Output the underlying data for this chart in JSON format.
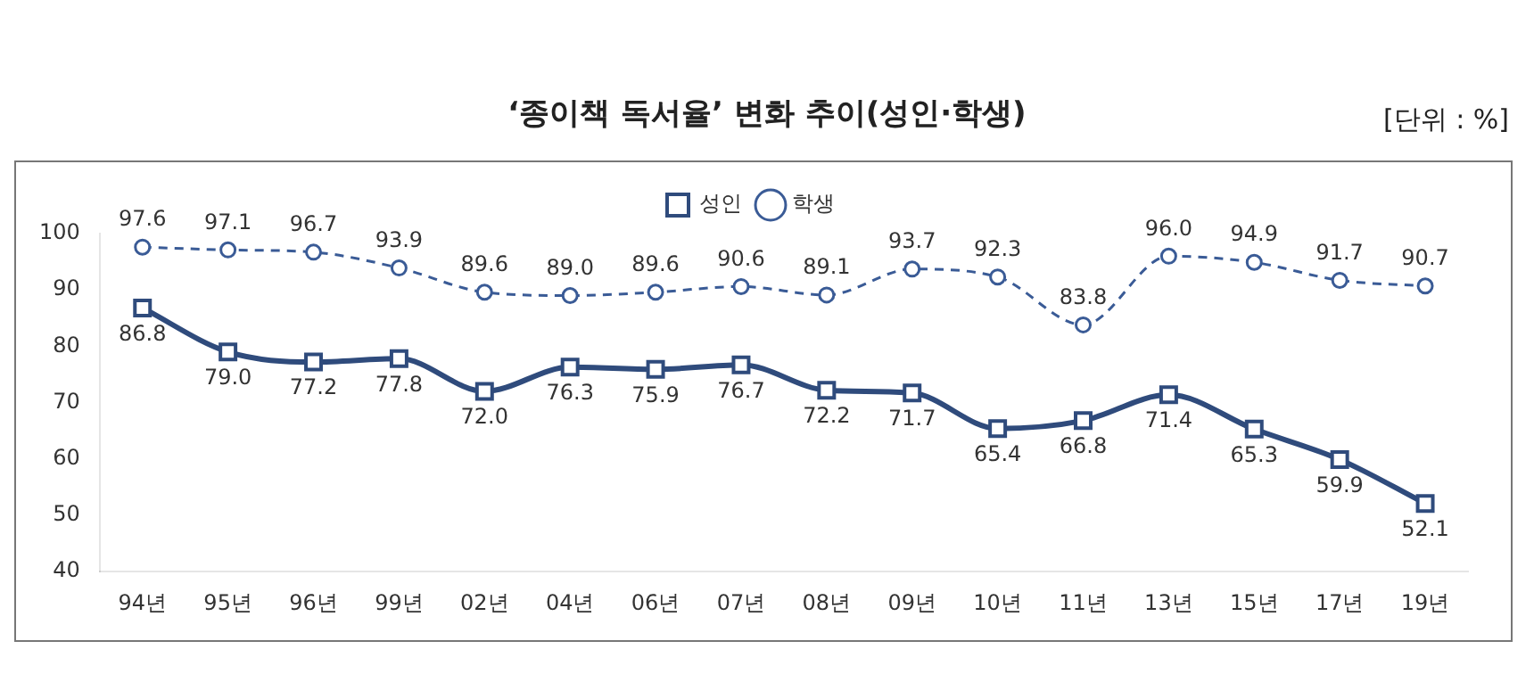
{
  "chart_data": {
    "type": "line",
    "title": "‘종이책 독서율’ 변화 추이(성인·학생)",
    "annotations": [
      "[단위 : %]"
    ],
    "categories": [
      "94년",
      "95년",
      "96년",
      "99년",
      "02년",
      "04년",
      "06년",
      "07년",
      "08년",
      "09년",
      "10년",
      "11년",
      "13년",
      "15년",
      "17년",
      "19년"
    ],
    "series": [
      {
        "name": "성인",
        "color": "#2f4b7c",
        "marker": "square",
        "line_style": "solid",
        "values": [
          86.8,
          79.0,
          77.2,
          77.8,
          72.0,
          76.3,
          75.9,
          76.7,
          72.2,
          71.7,
          65.4,
          66.8,
          71.4,
          65.3,
          59.9,
          52.1
        ],
        "value_labels": [
          "86.8",
          "79.0",
          "77.2",
          "77.8",
          "72.0",
          "76.3",
          "75.9",
          "76.7",
          "72.2",
          "71.7",
          "65.4",
          "66.8",
          "71.4",
          "65.3",
          "59.9",
          "52.1"
        ]
      },
      {
        "name": "학생",
        "color": "#3a5b96",
        "marker": "circle",
        "line_style": "dashed",
        "values": [
          97.6,
          97.1,
          96.7,
          93.9,
          89.6,
          89.0,
          89.6,
          90.6,
          89.1,
          93.7,
          92.3,
          83.8,
          96.0,
          94.9,
          91.7,
          90.7
        ],
        "value_labels": [
          "97.6",
          "97.1",
          "96.7",
          "93.9",
          "89.6",
          "89.0",
          "89.6",
          "90.6",
          "89.1",
          "93.7",
          "92.3",
          "83.8",
          "96.0",
          "94.9",
          "91.7",
          "90.7"
        ]
      }
    ],
    "ylim": [
      40,
      100
    ],
    "yticks": [
      40,
      50,
      60,
      70,
      80,
      90,
      100
    ],
    "grid": false,
    "legend": "top"
  }
}
